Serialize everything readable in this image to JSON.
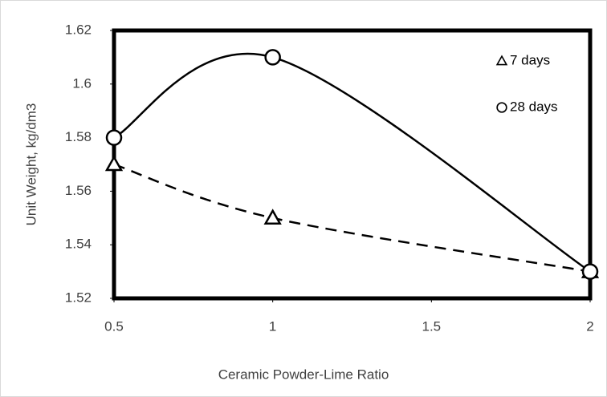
{
  "chart_data": {
    "type": "scatter",
    "x_label": "Ceramic Powder-Lime Ratio",
    "y_label": "Unit Weight, kg/dm3",
    "x": [
      0.5,
      1,
      2
    ],
    "series": [
      {
        "name": "7 days",
        "color": "#000000",
        "marker": "triangle",
        "dashed": true,
        "values": [
          1.57,
          1.55,
          1.53
        ]
      },
      {
        "name": "28 days",
        "color": "#000000",
        "marker": "circle",
        "dashed": false,
        "values": [
          1.58,
          1.61,
          1.53
        ]
      }
    ],
    "xlim": [
      0.5,
      2
    ],
    "xticks": [
      0.5,
      1,
      1.5,
      2
    ],
    "ylim": [
      1.52,
      1.62
    ],
    "yticks": [
      1.52,
      1.54,
      1.56,
      1.58,
      1.6,
      1.62
    ],
    "grid": false,
    "legend": "upper right"
  }
}
